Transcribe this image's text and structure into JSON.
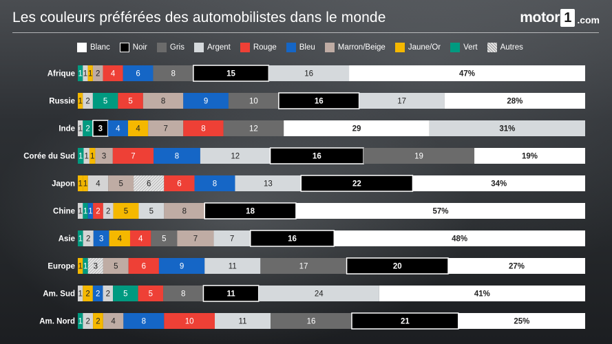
{
  "header": {
    "title": "Les couleurs préférées des automobilistes dans le monde",
    "logo": {
      "word": "motor",
      "box": "1",
      "domain": ".com"
    }
  },
  "legend": [
    {
      "key": "blanc",
      "label": "Blanc"
    },
    {
      "key": "noir",
      "label": "Noir"
    },
    {
      "key": "gris",
      "label": "Gris"
    },
    {
      "key": "argent",
      "label": "Argent"
    },
    {
      "key": "rouge",
      "label": "Rouge"
    },
    {
      "key": "bleu",
      "label": "Bleu"
    },
    {
      "key": "marron",
      "label": "Marron/Beige"
    },
    {
      "key": "jaune",
      "label": "Jaune/Or"
    },
    {
      "key": "vert",
      "label": "Vert"
    },
    {
      "key": "autres",
      "label": "Autres"
    }
  ],
  "colors": {
    "blanc": "#ffffff",
    "noir": "#000000",
    "gris": "#6b6b6b",
    "argent": "#d5d9dc",
    "rouge": "#ee4036",
    "bleu": "#1566c6",
    "marron": "#bfaca4",
    "jaune": "#f5b800",
    "vert": "#009a80",
    "autres": "#d4d4d4"
  },
  "chart_data": {
    "type": "bar",
    "orientation": "horizontal",
    "stacked": true,
    "unit": "%",
    "xlim": [
      0,
      100
    ],
    "series_keys": [
      "autres",
      "jaune",
      "vert",
      "marron",
      "bleu",
      "rouge",
      "argent",
      "gris",
      "noir",
      "blanc"
    ],
    "rows": [
      {
        "name": "Afrique",
        "segments": [
          {
            "key": "vert",
            "value": 1,
            "label": "1"
          },
          {
            "key": "autres",
            "value": 1,
            "label": "1"
          },
          {
            "key": "jaune",
            "value": 1,
            "label": "1"
          },
          {
            "key": "marron",
            "value": 2,
            "label": "2"
          },
          {
            "key": "rouge",
            "value": 4,
            "label": "4"
          },
          {
            "key": "bleu",
            "value": 6,
            "label": "6"
          },
          {
            "key": "gris",
            "value": 8,
            "label": "8"
          },
          {
            "key": "noir",
            "value": 15,
            "label": "15"
          },
          {
            "key": "argent",
            "value": 16,
            "label": "16"
          },
          {
            "key": "blanc",
            "value": 47,
            "label": "47%"
          }
        ]
      },
      {
        "name": "Russie",
        "segments": [
          {
            "key": "jaune",
            "value": 1,
            "label": "1"
          },
          {
            "key": "autres",
            "value": 2,
            "label": "2"
          },
          {
            "key": "vert",
            "value": 5,
            "label": "5"
          },
          {
            "key": "rouge",
            "value": 5,
            "label": "5"
          },
          {
            "key": "marron",
            "value": 8,
            "label": "8"
          },
          {
            "key": "bleu",
            "value": 9,
            "label": "9"
          },
          {
            "key": "gris",
            "value": 10,
            "label": "10"
          },
          {
            "key": "noir",
            "value": 16,
            "label": "16"
          },
          {
            "key": "argent",
            "value": 17,
            "label": "17"
          },
          {
            "key": "blanc",
            "value": 28,
            "label": "28%"
          }
        ]
      },
      {
        "name": "Inde",
        "segments": [
          {
            "key": "autres",
            "value": 1,
            "label": "1"
          },
          {
            "key": "vert",
            "value": 2,
            "label": "2"
          },
          {
            "key": "noir",
            "value": 3,
            "label": "3"
          },
          {
            "key": "bleu",
            "value": 4,
            "label": "4"
          },
          {
            "key": "jaune",
            "value": 4,
            "label": "4"
          },
          {
            "key": "marron",
            "value": 7,
            "label": "7"
          },
          {
            "key": "rouge",
            "value": 8,
            "label": "8"
          },
          {
            "key": "gris",
            "value": 12,
            "label": "12"
          },
          {
            "key": "blanc",
            "value": 29,
            "label": "29"
          },
          {
            "key": "argent",
            "value": 31,
            "label": "31%"
          }
        ]
      },
      {
        "name": "Corée du Sud",
        "segments": [
          {
            "key": "vert",
            "value": 1,
            "label": "1"
          },
          {
            "key": "autres",
            "value": 1,
            "label": "1"
          },
          {
            "key": "jaune",
            "value": 1,
            "label": "1"
          },
          {
            "key": "marron",
            "value": 3,
            "label": "3"
          },
          {
            "key": "rouge",
            "value": 7,
            "label": "7"
          },
          {
            "key": "bleu",
            "value": 8,
            "label": "8"
          },
          {
            "key": "argent",
            "value": 12,
            "label": "12"
          },
          {
            "key": "noir",
            "value": 16,
            "label": "16"
          },
          {
            "key": "gris",
            "value": 19,
            "label": "19"
          },
          {
            "key": "blanc",
            "value": 19,
            "label": "19%"
          }
        ]
      },
      {
        "name": "Japon",
        "segments": [
          {
            "key": "jaune",
            "value": 1,
            "label": "1"
          },
          {
            "key": "jaune",
            "value": 1,
            "label": "1"
          },
          {
            "key": "autres",
            "value": 4,
            "label": "4"
          },
          {
            "key": "marron",
            "value": 5,
            "label": "5"
          },
          {
            "key": "autres",
            "value": 6,
            "label": "6",
            "pattern": true
          },
          {
            "key": "rouge",
            "value": 6,
            "label": "6"
          },
          {
            "key": "bleu",
            "value": 8,
            "label": "8"
          },
          {
            "key": "argent",
            "value": 13,
            "label": "13"
          },
          {
            "key": "noir",
            "value": 22,
            "label": "22"
          },
          {
            "key": "blanc",
            "value": 34,
            "label": "34%"
          }
        ]
      },
      {
        "name": "Chine",
        "segments": [
          {
            "key": "autres",
            "value": 1,
            "label": "1"
          },
          {
            "key": "vert",
            "value": 1,
            "label": "1"
          },
          {
            "key": "bleu",
            "value": 1,
            "label": "1"
          },
          {
            "key": "rouge",
            "value": 2,
            "label": "2"
          },
          {
            "key": "autres",
            "value": 2,
            "label": "2"
          },
          {
            "key": "jaune",
            "value": 5,
            "label": "5"
          },
          {
            "key": "argent",
            "value": 5,
            "label": "5"
          },
          {
            "key": "marron",
            "value": 8,
            "label": "8"
          },
          {
            "key": "noir",
            "value": 18,
            "label": "18"
          },
          {
            "key": "blanc",
            "value": 57,
            "label": "57%"
          }
        ]
      },
      {
        "name": "Asie",
        "segments": [
          {
            "key": "vert",
            "value": 1,
            "label": "1"
          },
          {
            "key": "autres",
            "value": 2,
            "label": "2"
          },
          {
            "key": "bleu",
            "value": 3,
            "label": "3"
          },
          {
            "key": "jaune",
            "value": 4,
            "label": "4"
          },
          {
            "key": "rouge",
            "value": 4,
            "label": "4"
          },
          {
            "key": "gris",
            "value": 5,
            "label": "5"
          },
          {
            "key": "marron",
            "value": 7,
            "label": "7"
          },
          {
            "key": "argent",
            "value": 7,
            "label": "7"
          },
          {
            "key": "noir",
            "value": 16,
            "label": "16"
          },
          {
            "key": "blanc",
            "value": 48,
            "label": "48%"
          }
        ]
      },
      {
        "name": "Europe",
        "segments": [
          {
            "key": "jaune",
            "value": 1,
            "label": "1"
          },
          {
            "key": "vert",
            "value": 1,
            "label": "1"
          },
          {
            "key": "autres",
            "value": 3,
            "label": "3",
            "pattern": true
          },
          {
            "key": "marron",
            "value": 5,
            "label": "5"
          },
          {
            "key": "rouge",
            "value": 6,
            "label": "6"
          },
          {
            "key": "bleu",
            "value": 9,
            "label": "9"
          },
          {
            "key": "argent",
            "value": 11,
            "label": "11"
          },
          {
            "key": "gris",
            "value": 17,
            "label": "17"
          },
          {
            "key": "noir",
            "value": 20,
            "label": "20"
          },
          {
            "key": "blanc",
            "value": 27,
            "label": "27%"
          }
        ]
      },
      {
        "name": "Am. Sud",
        "segments": [
          {
            "key": "autres",
            "value": 1,
            "label": "1"
          },
          {
            "key": "jaune",
            "value": 2,
            "label": "2"
          },
          {
            "key": "bleu",
            "value": 2,
            "label": "2"
          },
          {
            "key": "autres",
            "value": 2,
            "label": "2"
          },
          {
            "key": "vert",
            "value": 5,
            "label": "5"
          },
          {
            "key": "rouge",
            "value": 5,
            "label": "5"
          },
          {
            "key": "gris",
            "value": 8,
            "label": "8"
          },
          {
            "key": "noir",
            "value": 11,
            "label": "11"
          },
          {
            "key": "argent",
            "value": 24,
            "label": "24"
          },
          {
            "key": "blanc",
            "value": 41,
            "label": "41%"
          }
        ]
      },
      {
        "name": "Am. Nord",
        "segments": [
          {
            "key": "vert",
            "value": 1,
            "label": "1"
          },
          {
            "key": "autres",
            "value": 2,
            "label": "2"
          },
          {
            "key": "jaune",
            "value": 2,
            "label": "2"
          },
          {
            "key": "marron",
            "value": 4,
            "label": "4"
          },
          {
            "key": "bleu",
            "value": 8,
            "label": "8"
          },
          {
            "key": "rouge",
            "value": 10,
            "label": "10"
          },
          {
            "key": "argent",
            "value": 11,
            "label": "11"
          },
          {
            "key": "gris",
            "value": 16,
            "label": "16"
          },
          {
            "key": "noir",
            "value": 21,
            "label": "21"
          },
          {
            "key": "blanc",
            "value": 25,
            "label": "25%"
          }
        ]
      }
    ]
  }
}
